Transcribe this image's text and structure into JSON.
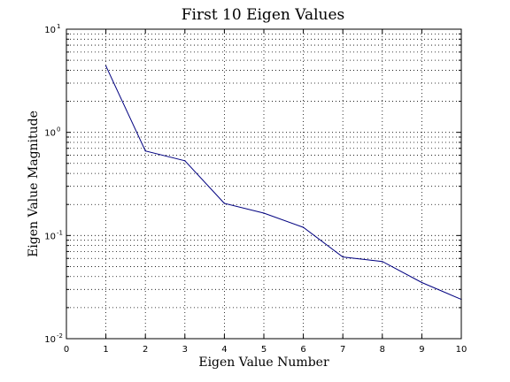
{
  "chart_data": {
    "type": "line",
    "title": "First 10 Eigen Values",
    "xlabel": "Eigen Value Number",
    "ylabel": "Eigen Value Magnitude",
    "xlim": [
      0,
      10
    ],
    "ylim": [
      0.01,
      10
    ],
    "yscale": "log",
    "grid": true,
    "x_ticks": [
      "0",
      "1",
      "2",
      "3",
      "4",
      "5",
      "6",
      "7",
      "8",
      "9",
      "10"
    ],
    "y_ticks": [
      {
        "base": "10",
        "exp": "-2",
        "value": 0.01
      },
      {
        "base": "10",
        "exp": "-1",
        "value": 0.1
      },
      {
        "base": "10",
        "exp": "0",
        "value": 1
      },
      {
        "base": "10",
        "exp": "1",
        "value": 10
      }
    ],
    "series": [
      {
        "color": "#000080",
        "x": [
          1,
          2,
          3,
          4,
          5,
          6,
          7,
          8,
          9,
          10
        ],
        "y": [
          4.4,
          0.66,
          0.53,
          0.205,
          0.165,
          0.12,
          0.062,
          0.056,
          0.035,
          0.024
        ]
      }
    ]
  }
}
